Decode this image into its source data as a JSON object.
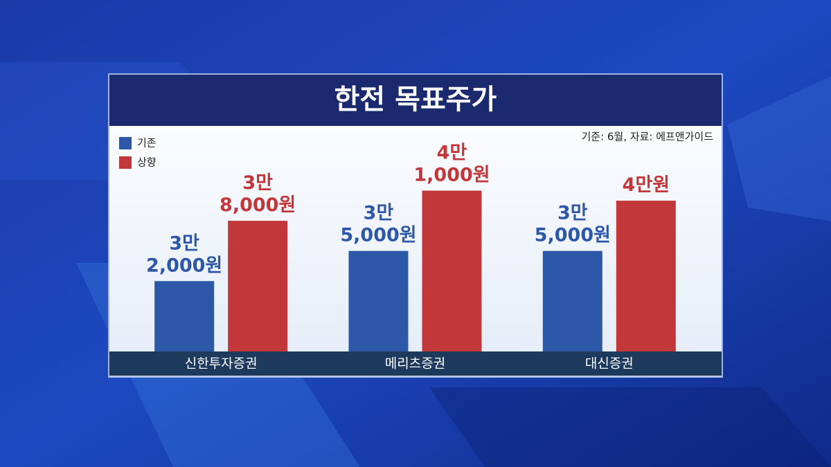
{
  "chart_data": {
    "type": "bar",
    "title": "한전 목표주가",
    "source": "기준: 6월, 자료: 에프앤가이드",
    "categories": [
      "신한투자증권",
      "메리츠증권",
      "대신증권"
    ],
    "series": [
      {
        "name": "기존",
        "color": "#2d58a8",
        "values": [
          32000,
          35000,
          35000
        ],
        "value_labels": [
          "3만 2,000원",
          "3만 5,000원",
          "3만 5,000원"
        ]
      },
      {
        "name": "상향",
        "color": "#c1373a",
        "values": [
          38000,
          41000,
          40000
        ],
        "value_labels": [
          "3만 8,000원",
          "4만 1,000원",
          "4만원"
        ]
      }
    ],
    "ylim": [
      25000,
      42000
    ],
    "legend": "top-left"
  }
}
